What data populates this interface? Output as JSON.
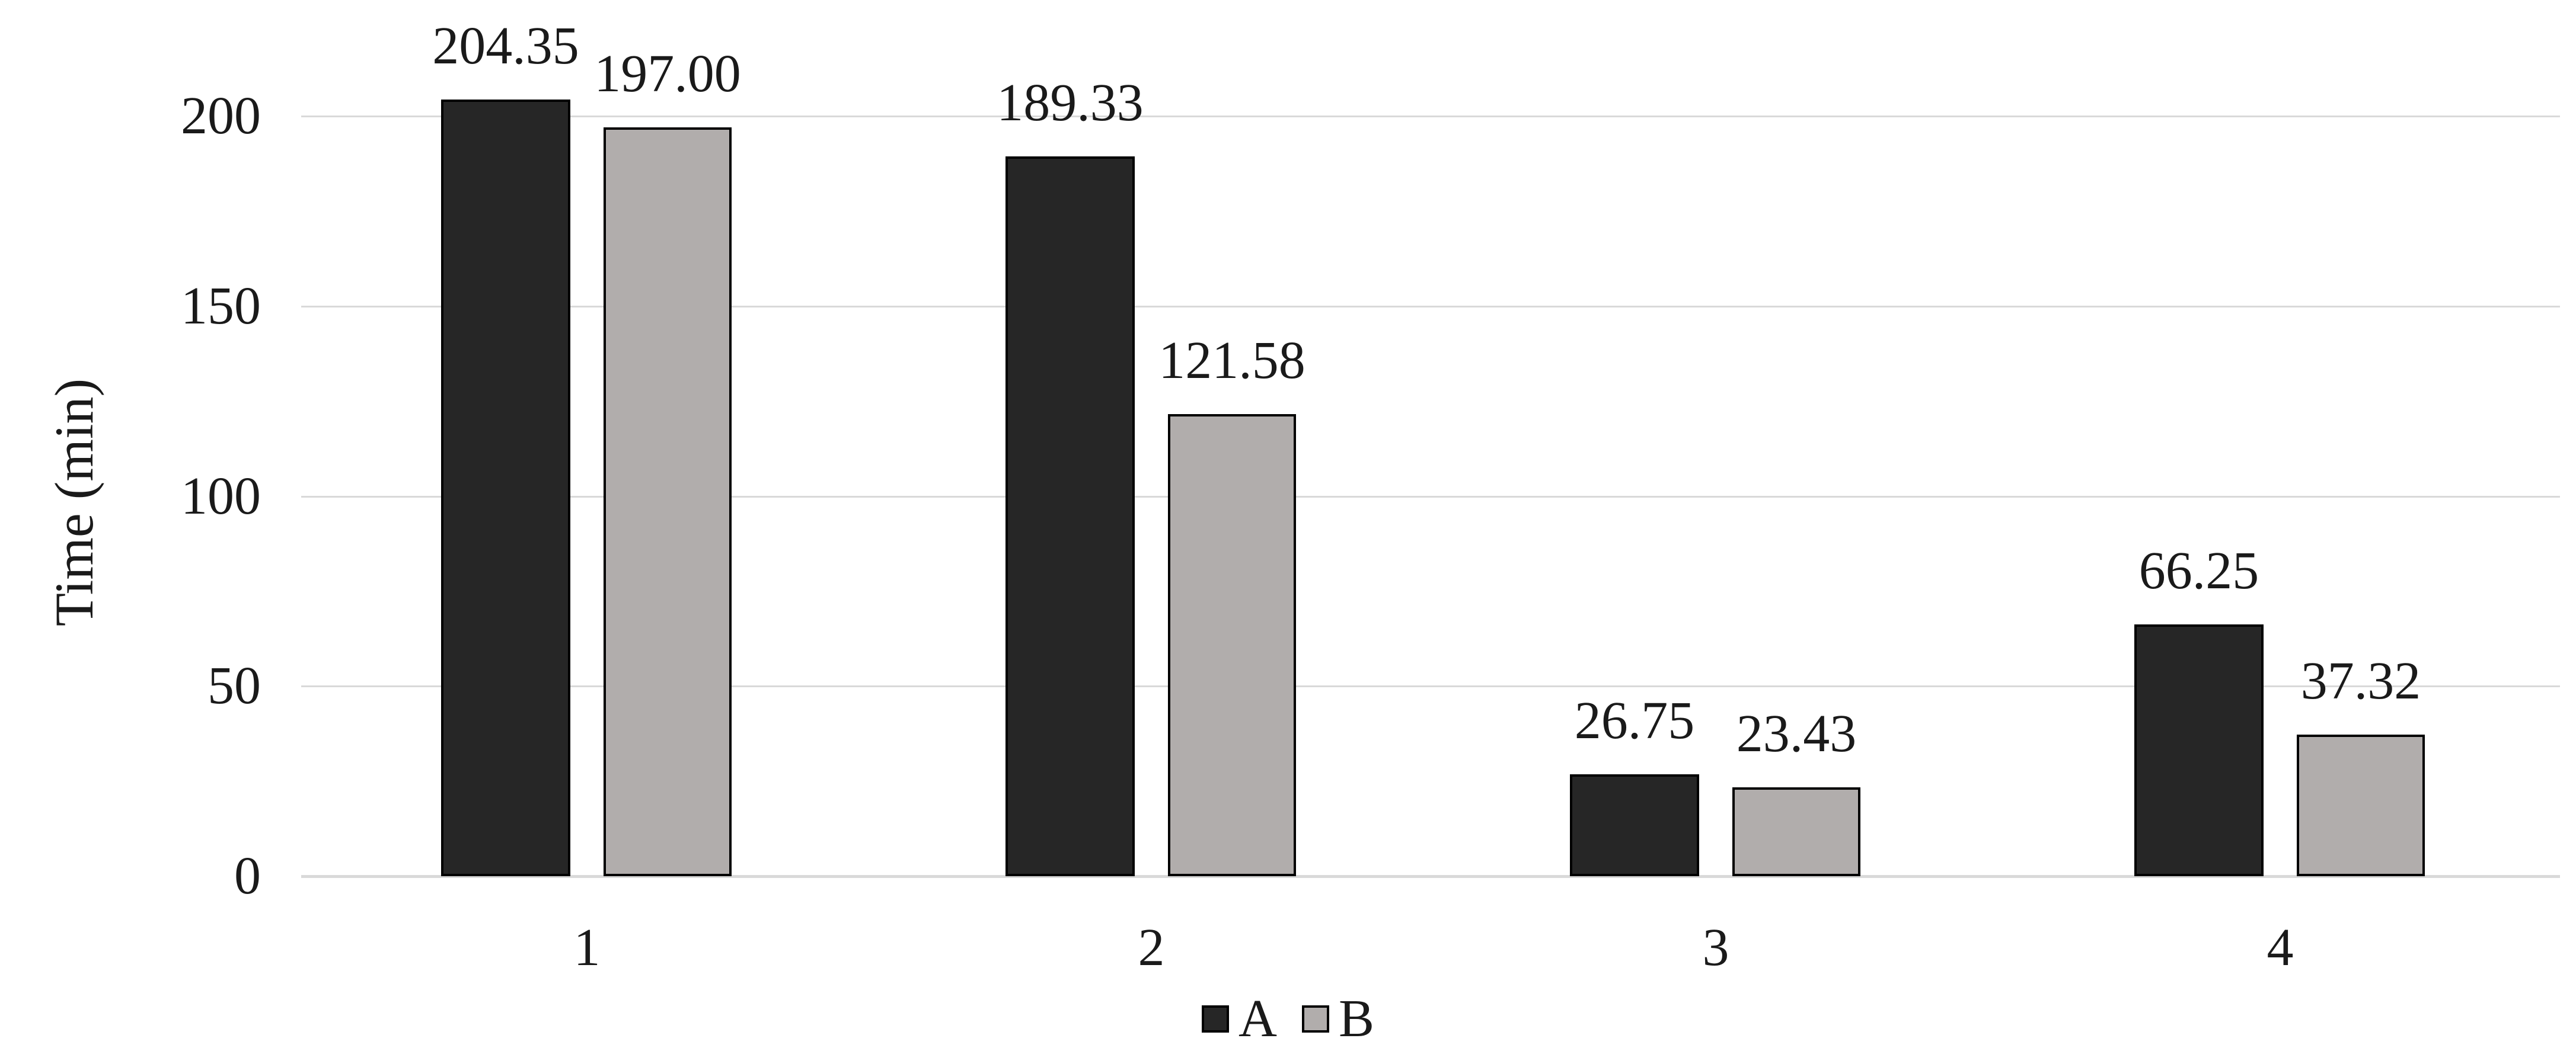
{
  "chart_data": {
    "type": "bar",
    "title": "",
    "xlabel": "",
    "ylabel": "Time (min)",
    "categories": [
      "1",
      "2",
      "3",
      "4"
    ],
    "series": [
      {
        "name": "A",
        "color": "#262626",
        "values": [
          204.35,
          189.33,
          26.75,
          66.25
        ],
        "labels": [
          "204.35",
          "189.33",
          "26.75",
          "66.25"
        ]
      },
      {
        "name": "B",
        "color": "#b1adac",
        "values": [
          197.0,
          121.58,
          23.43,
          37.32
        ],
        "labels": [
          "197.00",
          "121.58",
          "23.43",
          "37.32"
        ]
      }
    ],
    "ylim": [
      0,
      200
    ],
    "y_ticks": [
      "0",
      "50",
      "100",
      "150",
      "200"
    ],
    "grid": "horizontal",
    "gridline_color": "#d9d9d9",
    "bar_border_color": "#000000",
    "legend_position": "bottom",
    "legend_entries": [
      "A",
      "B"
    ]
  }
}
